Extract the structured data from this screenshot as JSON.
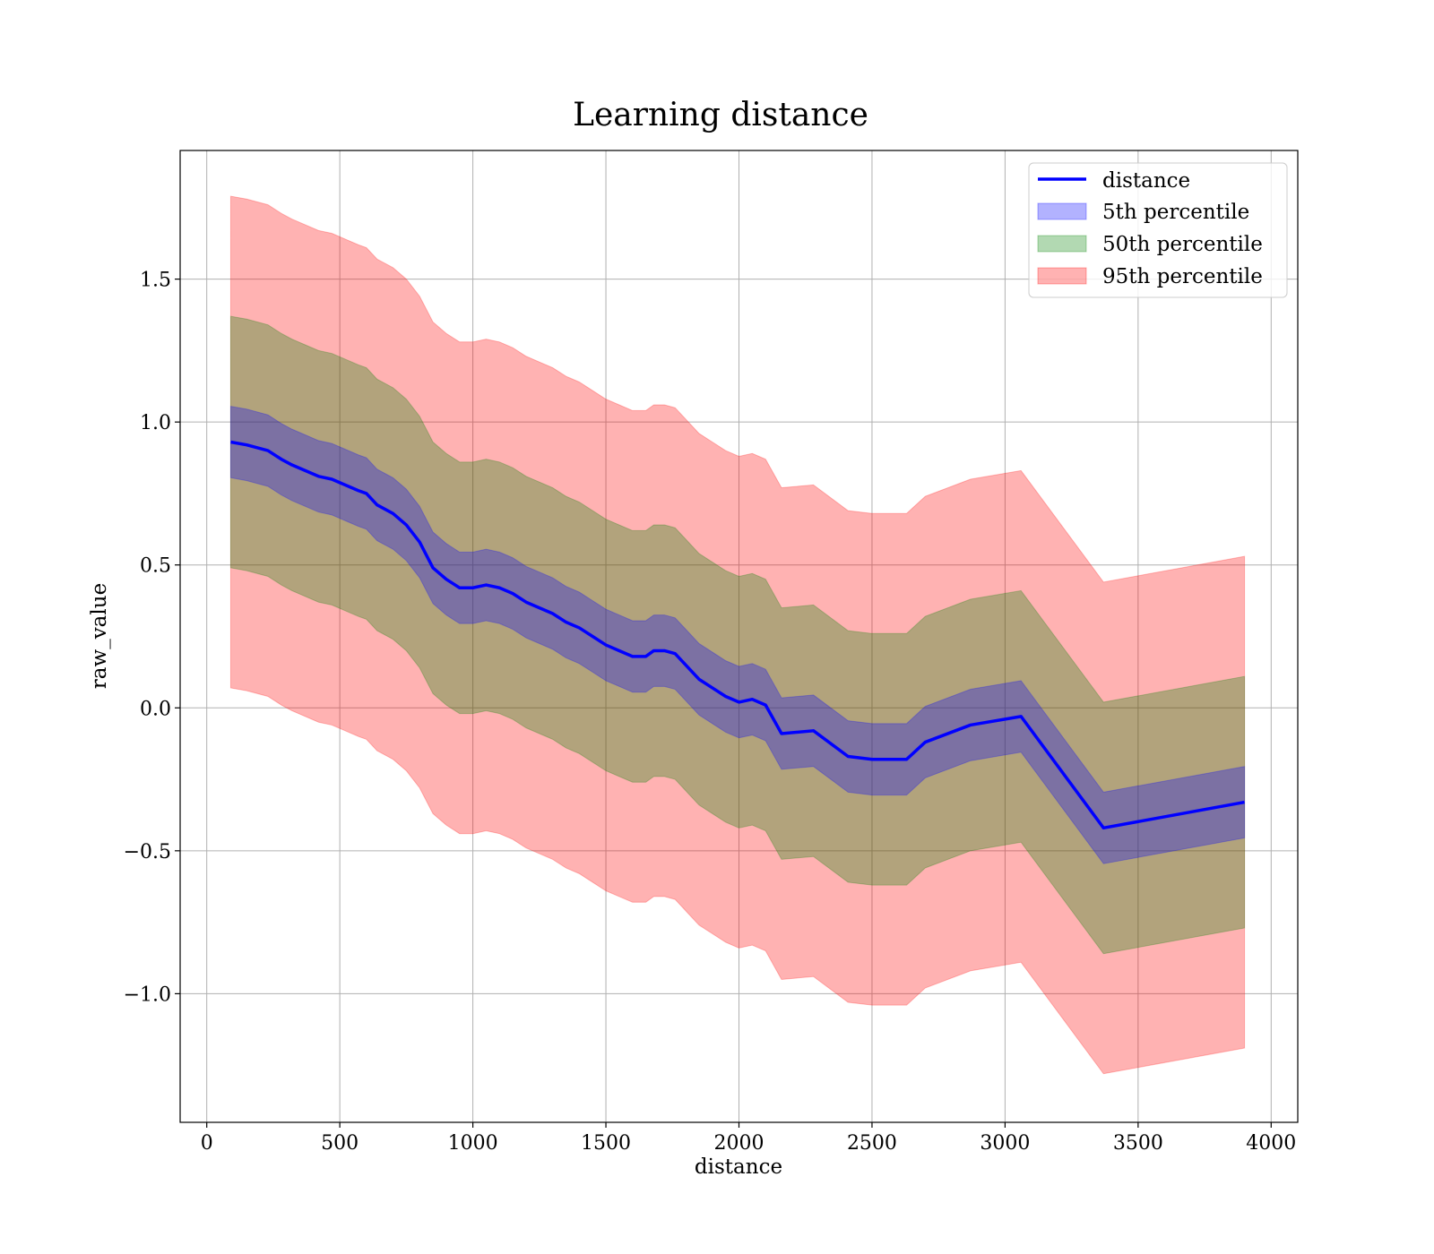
{
  "chart_data": {
    "type": "line",
    "title": "Learning distance",
    "xlabel": "distance",
    "ylabel": "raw_value",
    "xlim": [
      -100,
      4100
    ],
    "ylim": [
      -1.45,
      1.95
    ],
    "xticks": [
      0,
      500,
      1000,
      1500,
      2000,
      2500,
      3000,
      3500,
      4000
    ],
    "xtick_labels": [
      "0",
      "500",
      "1000",
      "1500",
      "2000",
      "2500",
      "3000",
      "3500",
      "4000"
    ],
    "yticks": [
      -1.0,
      -0.5,
      0.0,
      0.5,
      1.0,
      1.5
    ],
    "ytick_labels": [
      "−1.0",
      "−0.5",
      "0.0",
      "0.5",
      "1.0",
      "1.5"
    ],
    "grid": true,
    "legend_position": "top-right",
    "colors": {
      "line": "#0000ff",
      "p5": "#0000ff",
      "p50": "#008000",
      "p95": "#ff0000"
    },
    "x": [
      90,
      150,
      230,
      280,
      320,
      370,
      420,
      470,
      520,
      570,
      600,
      640,
      700,
      750,
      800,
      850,
      900,
      950,
      1000,
      1050,
      1100,
      1150,
      1200,
      1250,
      1300,
      1350,
      1400,
      1450,
      1500,
      1550,
      1600,
      1650,
      1680,
      1720,
      1760,
      1800,
      1850,
      1900,
      1950,
      2000,
      2050,
      2100,
      2160,
      2280,
      2410,
      2500,
      2630,
      2700,
      2870,
      3060,
      3370,
      3900
    ],
    "series": [
      {
        "name": "distance",
        "kind": "line",
        "values": [
          0.93,
          0.92,
          0.9,
          0.87,
          0.85,
          0.83,
          0.81,
          0.8,
          0.78,
          0.76,
          0.75,
          0.71,
          0.68,
          0.64,
          0.58,
          0.49,
          0.45,
          0.42,
          0.42,
          0.43,
          0.42,
          0.4,
          0.37,
          0.35,
          0.33,
          0.3,
          0.28,
          0.25,
          0.22,
          0.2,
          0.18,
          0.18,
          0.2,
          0.2,
          0.19,
          0.15,
          0.1,
          0.07,
          0.04,
          0.02,
          0.03,
          0.01,
          -0.09,
          -0.08,
          -0.17,
          -0.18,
          -0.18,
          -0.12,
          -0.06,
          -0.03,
          -0.42,
          -0.33
        ]
      },
      {
        "name": "5th percentile",
        "kind": "band",
        "offset": 0.125
      },
      {
        "name": "50th percentile",
        "kind": "band",
        "offset": 0.44
      },
      {
        "name": "95th percentile",
        "kind": "band",
        "offset": 0.86
      }
    ]
  }
}
